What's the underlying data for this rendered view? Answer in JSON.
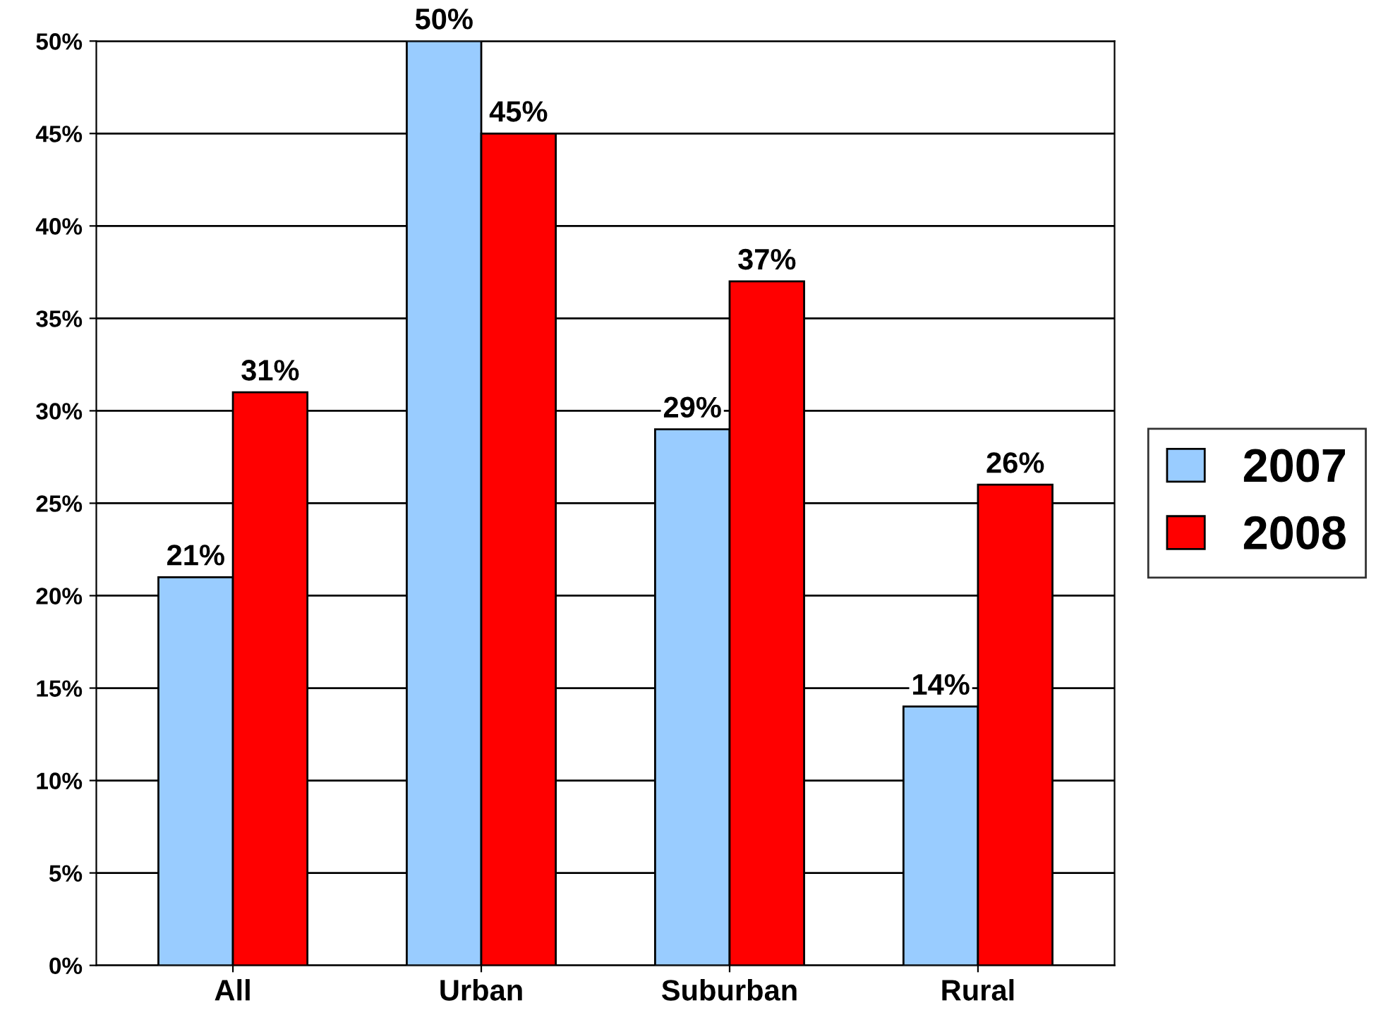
{
  "chart_data": {
    "type": "bar",
    "categories": [
      "All",
      "Urban",
      "Suburban",
      "Rural"
    ],
    "series": [
      {
        "name": "2007",
        "color": "#99ccff",
        "values": [
          21,
          50,
          29,
          14
        ],
        "value_labels": [
          "21%",
          "50%",
          "29%",
          "14%"
        ]
      },
      {
        "name": "2008",
        "color": "#ff0000",
        "values": [
          31,
          45,
          37,
          26
        ],
        "value_labels": [
          "31%",
          "45%",
          "37%",
          "26%"
        ]
      }
    ],
    "ylim": [
      0,
      50
    ],
    "yticks": [
      {
        "value": 0,
        "label": "0%"
      },
      {
        "value": 5,
        "label": "5%"
      },
      {
        "value": 10,
        "label": "10%"
      },
      {
        "value": 15,
        "label": "15%"
      },
      {
        "value": 20,
        "label": "20%"
      },
      {
        "value": 25,
        "label": "25%"
      },
      {
        "value": 30,
        "label": "30%"
      },
      {
        "value": 35,
        "label": "35%"
      },
      {
        "value": 40,
        "label": "40%"
      },
      {
        "value": 45,
        "label": "45%"
      },
      {
        "value": 50,
        "label": "50%"
      }
    ],
    "grid": "y",
    "legend": "right"
  }
}
